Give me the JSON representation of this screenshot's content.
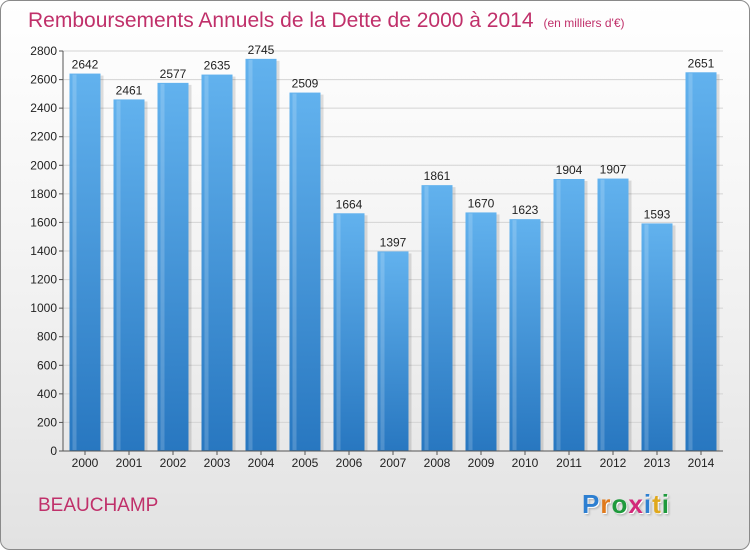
{
  "chart_data": {
    "type": "bar",
    "title": "Remboursements Annuels de la Dette de 2000 à 2014",
    "unit": "(en milliers d'€)",
    "categories": [
      "2000",
      "2001",
      "2002",
      "2003",
      "2004",
      "2005",
      "2006",
      "2007",
      "2008",
      "2009",
      "2010",
      "2011",
      "2012",
      "2013",
      "2014"
    ],
    "values": [
      2642,
      2461,
      2577,
      2635,
      2745,
      2509,
      1664,
      1397,
      1861,
      1670,
      1623,
      1904,
      1907,
      1593,
      2651
    ],
    "ylim": [
      0,
      2800
    ],
    "yticks": [
      0,
      200,
      400,
      600,
      800,
      1000,
      1200,
      1400,
      1600,
      1800,
      2000,
      2200,
      2400,
      2600,
      2800
    ],
    "grid": true,
    "bar_color": "#3f96dc"
  },
  "footer": {
    "commune": "BEAUCHAMP",
    "logo_letters": [
      {
        "ch": "P",
        "color": "#2d7fd1"
      },
      {
        "ch": "r",
        "color": "#e07a1c"
      },
      {
        "ch": "o",
        "color": "#1f9a3d"
      },
      {
        "ch": "x",
        "color": "#d22a7a"
      },
      {
        "ch": "i",
        "color": "#2d7fd1"
      },
      {
        "ch": "t",
        "color": "#e0a81c"
      },
      {
        "ch": "i",
        "color": "#1f9a3d"
      }
    ]
  }
}
